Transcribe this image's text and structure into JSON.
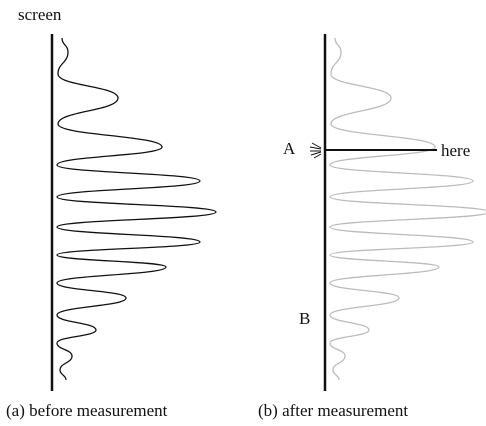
{
  "panel_a": {
    "screen_label": "screen",
    "caption": "(a) before measurement"
  },
  "panel_b": {
    "point_a": "A",
    "point_here": "here",
    "point_b": "B",
    "caption": "(b) after measurement"
  }
}
